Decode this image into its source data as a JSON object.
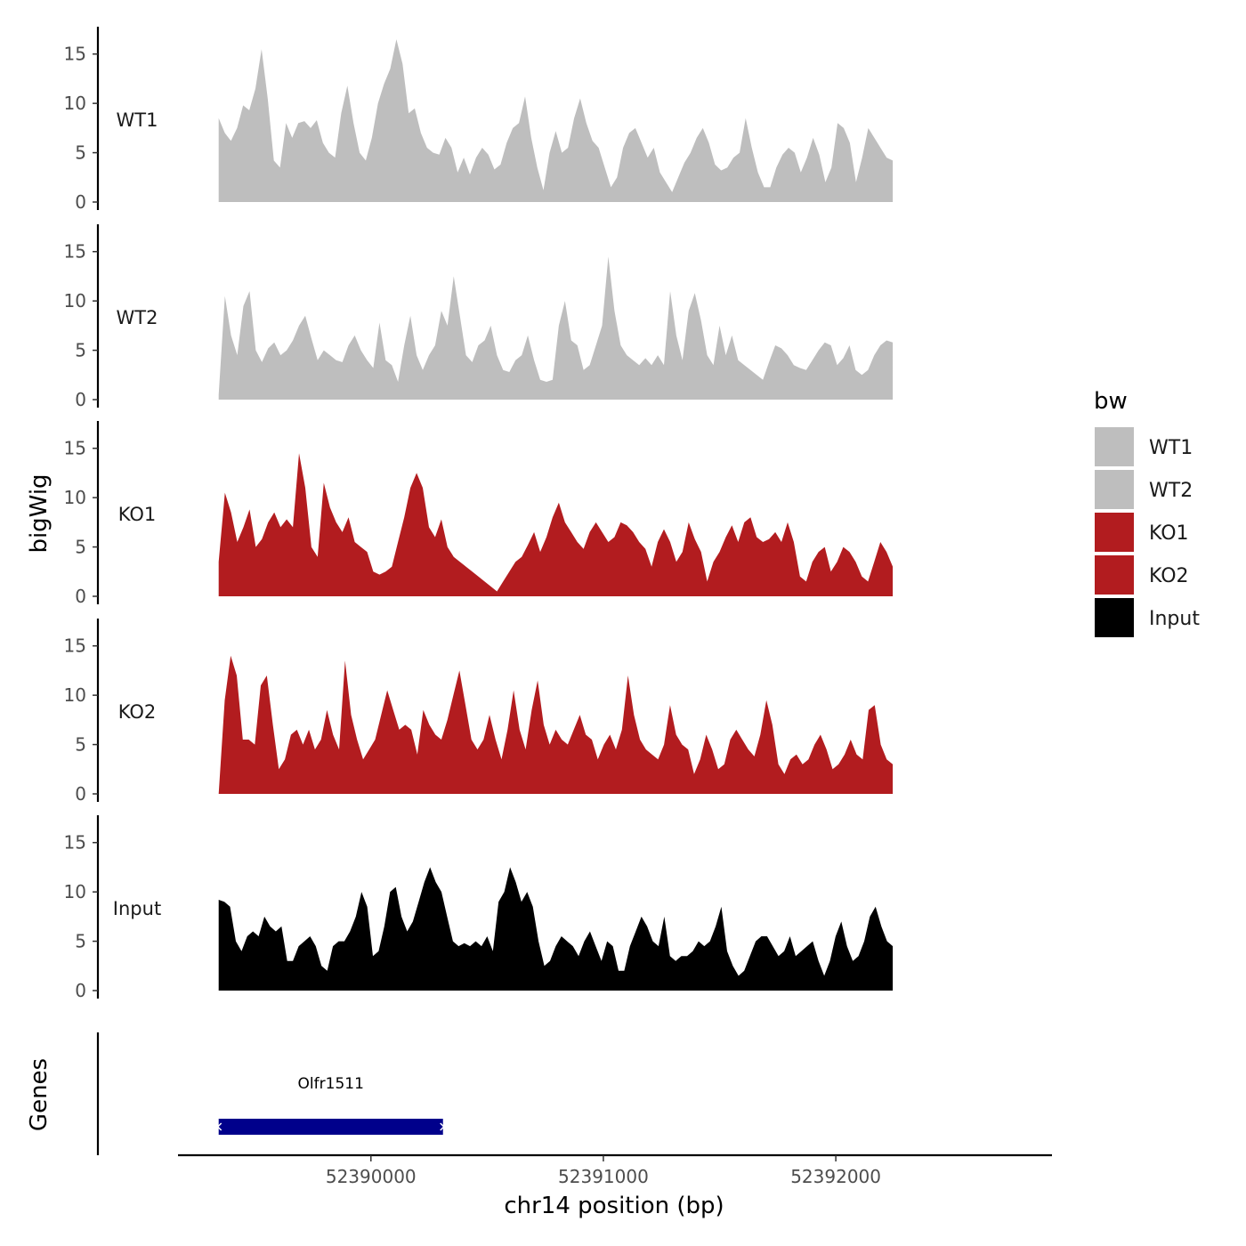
{
  "chart_data": {
    "type": "area",
    "title": "",
    "xlabel": "chr14 position (bp)",
    "ylabel": "bigWig",
    "genes_label": "Genes",
    "xlim": [
      52389170,
      52392930
    ],
    "x_ticks": [
      52390000,
      52391000,
      52392000
    ],
    "x_tick_labels": [
      "52390000",
      "52391000",
      "52392000"
    ],
    "ylim": [
      0,
      17.5
    ],
    "y_ticks": [
      0,
      5,
      10,
      15
    ],
    "y_tick_labels": [
      "0",
      "5",
      "10",
      "15"
    ],
    "region": [
      52389345,
      52392245
    ],
    "legend": {
      "title": "bw",
      "items": [
        {
          "label": "WT1",
          "color": "#bebebe"
        },
        {
          "label": "WT2",
          "color": "#bebebe"
        },
        {
          "label": "KO1",
          "color": "#b21c1f"
        },
        {
          "label": "KO2",
          "color": "#b21c1f"
        },
        {
          "label": "Input",
          "color": "#000000"
        }
      ]
    },
    "series": [
      {
        "name": "WT1",
        "color": "#bebebe",
        "values": [
          8.5,
          7,
          6.2,
          7.5,
          9.8,
          9.3,
          11.5,
          15.5,
          10.5,
          4.2,
          3.5,
          8,
          6.5,
          8,
          8.2,
          7.5,
          8.3,
          6,
          5,
          4.5,
          9,
          11.8,
          8,
          5,
          4.2,
          6.5,
          10,
          12,
          13.5,
          16.5,
          14,
          9,
          9.5,
          7,
          5.5,
          5,
          4.8,
          6.5,
          5.5,
          3,
          4.5,
          2.8,
          4.5,
          5.5,
          4.8,
          3.3,
          3.8,
          6,
          7.5,
          8,
          10.7,
          6.5,
          3.5,
          1.2,
          5,
          7.2,
          5,
          5.5,
          8.5,
          10.5,
          8,
          6.2,
          5.5,
          3.5,
          1.5,
          2.5,
          5.5,
          7,
          7.5,
          6,
          4.5,
          5.5,
          3,
          2,
          1,
          2.5,
          4,
          5,
          6.5,
          7.5,
          6,
          3.8,
          3.2,
          3.5,
          4.5,
          5,
          8.5,
          5.5,
          3,
          1.5,
          1.5,
          3.5,
          4.8,
          5.5,
          5,
          3,
          4.5,
          6.5,
          4.8,
          2,
          3.5,
          8,
          7.5,
          6,
          2,
          4.5,
          7.5,
          6.5,
          5.5,
          4.5,
          4.2
        ]
      },
      {
        "name": "WT2",
        "color": "#bebebe",
        "values": [
          0.5,
          10.5,
          6.5,
          4.5,
          9.5,
          11,
          5,
          3.8,
          5.2,
          5.8,
          4.5,
          5,
          6,
          7.5,
          8.5,
          6.2,
          4,
          5,
          4.5,
          4,
          3.8,
          5.5,
          6.5,
          5,
          4,
          3.2,
          7.8,
          4,
          3.5,
          1.8,
          5.5,
          8.5,
          4.5,
          3,
          4.5,
          5.5,
          9,
          7.5,
          12.5,
          8.5,
          4.5,
          3.8,
          5.5,
          6,
          7.5,
          4.5,
          3,
          2.8,
          4,
          4.5,
          6.5,
          4,
          2,
          1.8,
          2,
          7.5,
          10,
          6,
          5.5,
          3,
          3.5,
          5.5,
          7.5,
          14.5,
          9,
          5.5,
          4.5,
          4,
          3.5,
          4.2,
          3.5,
          4.5,
          3.5,
          11,
          6.5,
          4,
          9,
          10.8,
          8,
          4.5,
          3.5,
          7.5,
          4.5,
          6.5,
          4,
          3.5,
          3,
          2.5,
          2,
          3.8,
          5.5,
          5.2,
          4.5,
          3.5,
          3.2,
          3,
          4,
          5,
          5.8,
          5.5,
          3.5,
          4.2,
          5.5,
          3,
          2.5,
          3,
          4.5,
          5.5,
          6,
          5.8
        ]
      },
      {
        "name": "KO1",
        "color": "#b21c1f",
        "values": [
          3.5,
          10.5,
          8.5,
          5.5,
          7,
          8.8,
          5,
          5.8,
          7.5,
          8.5,
          7,
          7.8,
          7,
          14.5,
          11,
          5,
          4,
          11.5,
          9,
          7.5,
          6.5,
          8,
          5.5,
          5,
          4.5,
          2.5,
          2.2,
          2.5,
          3,
          5.5,
          8,
          11,
          12.5,
          11,
          7,
          6,
          7.8,
          5,
          4,
          3.5,
          3,
          2.5,
          2,
          1.5,
          1,
          0.5,
          1.5,
          2.5,
          3.5,
          4,
          5.2,
          6.5,
          4.5,
          6,
          8,
          9.5,
          7.5,
          6.5,
          5.5,
          4.8,
          6.5,
          7.5,
          6.5,
          5.5,
          6,
          7.5,
          7.2,
          6.5,
          5.5,
          4.8,
          3,
          5.5,
          6.8,
          5.5,
          3.5,
          4.5,
          7.5,
          5.8,
          4.5,
          1.5,
          3.5,
          4.5,
          6,
          7.2,
          5.5,
          7.5,
          8,
          6,
          5.5,
          5.8,
          6.5,
          5.5,
          7.5,
          5.5,
          2,
          1.5,
          3.5,
          4.5,
          5,
          2.5,
          3.5,
          5,
          4.5,
          3.5,
          2,
          1.5,
          3.5,
          5.5,
          4.5,
          3
        ]
      },
      {
        "name": "KO2",
        "color": "#b21c1f",
        "values": [
          0,
          9.5,
          14,
          12,
          5.5,
          5.5,
          5,
          11,
          12,
          7,
          2.5,
          3.5,
          6,
          6.5,
          5,
          6.5,
          4.5,
          5.5,
          8.5,
          6,
          4.5,
          13.5,
          8,
          5.5,
          3.5,
          4.5,
          5.5,
          8,
          10.5,
          8.5,
          6.5,
          7,
          6.5,
          4,
          8.5,
          7,
          6,
          5.5,
          7.5,
          10,
          12.5,
          9,
          5.5,
          4.5,
          5.5,
          8,
          5.5,
          3.5,
          6.5,
          10.5,
          6.5,
          4.5,
          8.5,
          11.5,
          7,
          5,
          6.5,
          5.5,
          5,
          6.5,
          8,
          6,
          5.5,
          3.5,
          5,
          6,
          4.5,
          6.5,
          12,
          8,
          5.5,
          4.5,
          4,
          3.5,
          5,
          9,
          6,
          5,
          4.5,
          2,
          3.5,
          6,
          4.5,
          2.5,
          3,
          5.5,
          6.5,
          5.5,
          4.5,
          3.8,
          6,
          9.5,
          7,
          3,
          2,
          3.5,
          4,
          3,
          3.5,
          5,
          6,
          4.5,
          2.5,
          3,
          4,
          5.5,
          4,
          3.5,
          8.5,
          9,
          5,
          3.5,
          3
        ]
      },
      {
        "name": "Input",
        "color": "#000000",
        "values": [
          9.2,
          9,
          8.5,
          5,
          4,
          5.5,
          6,
          5.5,
          7.5,
          6.5,
          6,
          6.5,
          3,
          3,
          4.5,
          5,
          5.5,
          4.5,
          2.5,
          2,
          4.5,
          5,
          5,
          6,
          7.5,
          10,
          8.5,
          3.5,
          4,
          6.5,
          10,
          10.5,
          7.5,
          6,
          7,
          9,
          11,
          12.5,
          11,
          10,
          7.5,
          5,
          4.5,
          4.8,
          4.5,
          5,
          4.5,
          5.5,
          4,
          9,
          10,
          12.5,
          11,
          9,
          10,
          8.5,
          5,
          2.5,
          3,
          4.5,
          5.5,
          5,
          4.5,
          3.5,
          5,
          6,
          4.5,
          3,
          5,
          4.5,
          2,
          2,
          4.5,
          6,
          7.5,
          6.5,
          5,
          4.5,
          7.5,
          3.5,
          3,
          3.5,
          3.5,
          4,
          5,
          4.5,
          5,
          6.5,
          8.5,
          4,
          2.5,
          1.5,
          2,
          3.5,
          5,
          5.5,
          5.5,
          4.5,
          3.5,
          4,
          5.5,
          3.5,
          4,
          4.5,
          5,
          3,
          1.5,
          3,
          5.5,
          7,
          4.5,
          3,
          3.5,
          5,
          7.5,
          8.5,
          6.5,
          5,
          4.5
        ]
      }
    ],
    "genes": [
      {
        "name": "Olfr1511",
        "start": 52389345,
        "end": 52390310,
        "color": "#00008b"
      }
    ]
  }
}
